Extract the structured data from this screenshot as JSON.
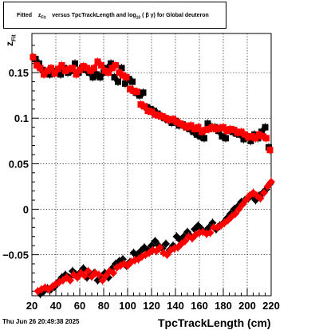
{
  "title": {
    "prefix": "Fitted",
    "var_main": "z",
    "var_sub": "Fit",
    "middle": "versus TpcTrackLength and log",
    "log_sub": "10",
    "beta_gamma": "( β γ)",
    "suffix": "for Global deuteron"
  },
  "footer": {
    "date": "Thu Jun 26 20:49:38 2025"
  },
  "chart_data": {
    "type": "scatter",
    "xlabel": "TpcTrackLength (cm)",
    "ylabel_main": "z",
    "ylabel_sub": "Fit",
    "xlim": [
      20,
      220
    ],
    "ylim": [
      -0.095,
      0.193
    ],
    "grid": true,
    "x_ticks": [
      20,
      40,
      60,
      80,
      100,
      120,
      140,
      160,
      180,
      200,
      220
    ],
    "y_ticks": [
      -0.05,
      0,
      0.05,
      0.1,
      0.15
    ],
    "y_tick_labels": [
      "−0.05",
      "0",
      "0.05",
      "0.1",
      "0.15"
    ],
    "colors": {
      "black_series": "#000000",
      "red_series": "#ff0000"
    },
    "series": [
      {
        "marker": "square",
        "color": "#000000",
        "points": [
          [
            23,
            0.165
          ],
          [
            26,
            0.16
          ],
          [
            29,
            0.153
          ],
          [
            32,
            0.15
          ],
          [
            35,
            0.148
          ],
          [
            38,
            0.15
          ],
          [
            41,
            0.152
          ],
          [
            44,
            0.148
          ],
          [
            47,
            0.155
          ],
          [
            50,
            0.15
          ],
          [
            53,
            0.152
          ],
          [
            56,
            0.16
          ],
          [
            59,
            0.15
          ],
          [
            62,
            0.155
          ],
          [
            65,
            0.153
          ],
          [
            68,
            0.15
          ],
          [
            71,
            0.145
          ],
          [
            74,
            0.148
          ],
          [
            77,
            0.145
          ],
          [
            80,
            0.15
          ],
          [
            83,
            0.155
          ],
          [
            86,
            0.16
          ],
          [
            89,
            0.145
          ],
          [
            92,
            0.14
          ],
          [
            95,
            0.155
          ],
          [
            98,
            0.138
          ],
          [
            101,
            0.143
          ],
          [
            104,
            0.14
          ],
          [
            107,
            0.128
          ],
          [
            110,
            0.125
          ],
          [
            113,
            0.128
          ],
          [
            116,
            0.112
          ],
          [
            119,
            0.11
          ],
          [
            122,
            0.108
          ],
          [
            125,
            0.105
          ],
          [
            128,
            0.102
          ],
          [
            131,
            0.1
          ],
          [
            134,
            0.098
          ],
          [
            137,
            0.095
          ],
          [
            140,
            0.097
          ],
          [
            143,
            0.092
          ],
          [
            146,
            0.093
          ],
          [
            149,
            0.09
          ],
          [
            152,
            0.088
          ],
          [
            155,
            0.085
          ],
          [
            158,
            0.082
          ],
          [
            161,
            0.08
          ],
          [
            164,
            0.078
          ],
          [
            167,
            0.094
          ],
          [
            170,
            0.09
          ],
          [
            173,
            0.09
          ],
          [
            176,
            0.086
          ],
          [
            179,
            0.08
          ],
          [
            182,
            0.078
          ],
          [
            185,
            0.087
          ],
          [
            188,
            0.085
          ],
          [
            191,
            0.083
          ],
          [
            194,
            0.082
          ],
          [
            197,
            0.077
          ],
          [
            200,
            0.08
          ],
          [
            203,
            0.075
          ],
          [
            206,
            0.082
          ],
          [
            209,
            0.078
          ],
          [
            212,
            0.085
          ],
          [
            215,
            0.09
          ],
          [
            218,
            0.068
          ]
        ]
      },
      {
        "marker": "square",
        "color": "#ff0000",
        "points": [
          [
            21,
            0.167
          ],
          [
            24,
            0.158
          ],
          [
            27,
            0.155
          ],
          [
            30,
            0.148
          ],
          [
            33,
            0.152
          ],
          [
            36,
            0.155
          ],
          [
            39,
            0.149
          ],
          [
            42,
            0.154
          ],
          [
            45,
            0.158
          ],
          [
            48,
            0.152
          ],
          [
            51,
            0.154
          ],
          [
            54,
            0.155
          ],
          [
            57,
            0.148
          ],
          [
            60,
            0.153
          ],
          [
            63,
            0.157
          ],
          [
            66,
            0.155
          ],
          [
            69,
            0.152
          ],
          [
            72,
            0.155
          ],
          [
            75,
            0.162
          ],
          [
            78,
            0.158
          ],
          [
            81,
            0.152
          ],
          [
            84,
            0.15
          ],
          [
            87,
            0.155
          ],
          [
            90,
            0.158
          ],
          [
            93,
            0.15
          ],
          [
            96,
            0.147
          ],
          [
            99,
            0.145
          ],
          [
            102,
            0.132
          ],
          [
            105,
            0.13
          ],
          [
            108,
            0.129
          ],
          [
            111,
            0.115
          ],
          [
            114,
            0.113
          ],
          [
            117,
            0.108
          ],
          [
            120,
            0.107
          ],
          [
            123,
            0.104
          ],
          [
            126,
            0.103
          ],
          [
            129,
            0.102
          ],
          [
            132,
            0.1
          ],
          [
            135,
            0.098
          ],
          [
            138,
            0.099
          ],
          [
            141,
            0.096
          ],
          [
            144,
            0.094
          ],
          [
            147,
            0.092
          ],
          [
            150,
            0.09
          ],
          [
            153,
            0.092
          ],
          [
            156,
            0.088
          ],
          [
            159,
            0.09
          ],
          [
            162,
            0.085
          ],
          [
            165,
            0.087
          ],
          [
            168,
            0.088
          ],
          [
            171,
            0.09
          ],
          [
            174,
            0.088
          ],
          [
            177,
            0.089
          ],
          [
            180,
            0.09
          ],
          [
            183,
            0.086
          ],
          [
            186,
            0.088
          ],
          [
            189,
            0.087
          ],
          [
            192,
            0.084
          ],
          [
            195,
            0.085
          ],
          [
            198,
            0.082
          ],
          [
            201,
            0.079
          ],
          [
            204,
            0.08
          ],
          [
            207,
            0.078
          ],
          [
            210,
            0.082
          ],
          [
            213,
            0.08
          ],
          [
            216,
            0.078
          ],
          [
            219,
            0.065
          ]
        ]
      },
      {
        "marker": "diamond",
        "color": "#000000",
        "points": [
          [
            27,
            -0.093
          ],
          [
            30,
            -0.09
          ],
          [
            33,
            -0.087
          ],
          [
            36,
            -0.088
          ],
          [
            39,
            -0.085
          ],
          [
            42,
            -0.08
          ],
          [
            45,
            -0.075
          ],
          [
            48,
            -0.072
          ],
          [
            51,
            -0.075
          ],
          [
            54,
            -0.068
          ],
          [
            57,
            -0.072
          ],
          [
            60,
            -0.07
          ],
          [
            63,
            -0.065
          ],
          [
            66,
            -0.075
          ],
          [
            69,
            -0.072
          ],
          [
            72,
            -0.07
          ],
          [
            75,
            -0.078
          ],
          [
            78,
            -0.076
          ],
          [
            81,
            -0.07
          ],
          [
            84,
            -0.075
          ],
          [
            87,
            -0.065
          ],
          [
            90,
            -0.06
          ],
          [
            93,
            -0.057
          ],
          [
            96,
            -0.055
          ],
          [
            99,
            -0.062
          ],
          [
            102,
            -0.058
          ],
          [
            105,
            -0.048
          ],
          [
            108,
            -0.05
          ],
          [
            111,
            -0.046
          ],
          [
            114,
            -0.042
          ],
          [
            117,
            -0.045
          ],
          [
            120,
            -0.04
          ],
          [
            123,
            -0.035
          ],
          [
            126,
            -0.04
          ],
          [
            129,
            -0.043
          ],
          [
            132,
            -0.038
          ],
          [
            135,
            -0.045
          ],
          [
            138,
            -0.04
          ],
          [
            141,
            -0.03
          ],
          [
            144,
            -0.034
          ],
          [
            147,
            -0.03
          ],
          [
            150,
            -0.025
          ],
          [
            153,
            -0.03
          ],
          [
            156,
            -0.022
          ],
          [
            159,
            -0.018
          ],
          [
            162,
            -0.022
          ],
          [
            165,
            -0.025
          ],
          [
            168,
            -0.02
          ],
          [
            171,
            -0.015
          ],
          [
            174,
            -0.022
          ],
          [
            177,
            -0.018
          ],
          [
            180,
            -0.015
          ],
          [
            183,
            -0.01
          ],
          [
            186,
            -0.005
          ],
          [
            189,
            0
          ],
          [
            192,
            0.003
          ],
          [
            195,
            0.008
          ],
          [
            198,
            0.01
          ],
          [
            201,
            0.012
          ],
          [
            204,
            0.015
          ],
          [
            207,
            0.01
          ],
          [
            210,
            0.015
          ],
          [
            213,
            0.018
          ],
          [
            216,
            0.022
          ],
          [
            219,
            0.028
          ]
        ]
      },
      {
        "marker": "diamond",
        "color": "#ff0000",
        "points": [
          [
            25,
            -0.09
          ],
          [
            28,
            -0.088
          ],
          [
            31,
            -0.086
          ],
          [
            34,
            -0.088
          ],
          [
            37,
            -0.085
          ],
          [
            40,
            -0.082
          ],
          [
            43,
            -0.08
          ],
          [
            46,
            -0.078
          ],
          [
            49,
            -0.075
          ],
          [
            52,
            -0.078
          ],
          [
            55,
            -0.072
          ],
          [
            58,
            -0.075
          ],
          [
            61,
            -0.07
          ],
          [
            64,
            -0.073
          ],
          [
            67,
            -0.068
          ],
          [
            70,
            -0.074
          ],
          [
            73,
            -0.07
          ],
          [
            76,
            -0.072
          ],
          [
            79,
            -0.078
          ],
          [
            82,
            -0.073
          ],
          [
            85,
            -0.068
          ],
          [
            88,
            -0.07
          ],
          [
            91,
            -0.064
          ],
          [
            94,
            -0.062
          ],
          [
            97,
            -0.06
          ],
          [
            100,
            -0.062
          ],
          [
            103,
            -0.058
          ],
          [
            106,
            -0.056
          ],
          [
            109,
            -0.055
          ],
          [
            112,
            -0.052
          ],
          [
            115,
            -0.05
          ],
          [
            118,
            -0.048
          ],
          [
            121,
            -0.045
          ],
          [
            124,
            -0.046
          ],
          [
            127,
            -0.042
          ],
          [
            130,
            -0.048
          ],
          [
            133,
            -0.05
          ],
          [
            136,
            -0.045
          ],
          [
            139,
            -0.043
          ],
          [
            142,
            -0.042
          ],
          [
            145,
            -0.038
          ],
          [
            148,
            -0.035
          ],
          [
            151,
            -0.03
          ],
          [
            154,
            -0.032
          ],
          [
            157,
            -0.028
          ],
          [
            160,
            -0.026
          ],
          [
            163,
            -0.025
          ],
          [
            166,
            -0.027
          ],
          [
            169,
            -0.026
          ],
          [
            172,
            -0.02
          ],
          [
            175,
            -0.02
          ],
          [
            178,
            -0.018
          ],
          [
            181,
            -0.015
          ],
          [
            184,
            -0.012
          ],
          [
            187,
            -0.008
          ],
          [
            190,
            -0.005
          ],
          [
            193,
            0
          ],
          [
            196,
            0.005
          ],
          [
            199,
            0.01
          ],
          [
            202,
            0.015
          ],
          [
            205,
            0.018
          ],
          [
            208,
            0.015
          ],
          [
            211,
            0.012
          ],
          [
            214,
            0.018
          ],
          [
            217,
            0.025
          ],
          [
            220,
            0.03
          ]
        ]
      }
    ]
  }
}
